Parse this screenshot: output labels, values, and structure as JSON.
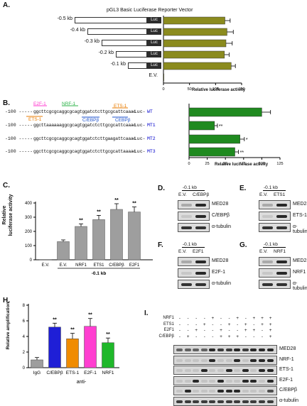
{
  "panel_labels": {
    "A": "A.",
    "B": "B.",
    "C": "C.",
    "D": "D.",
    "E": "E.",
    "F": "F.",
    "G": "G.",
    "H": "H.",
    "I": "I."
  },
  "colors": {
    "olive": "#8b8b1e",
    "green": "#1f8a1f",
    "gray": "#9e9e9e",
    "magenta": "#ff3fd0",
    "blue": "#0000cc",
    "orange": "#e87e04",
    "nrf1_green": "#2db34a",
    "pink_e2f1": "#e040e0",
    "blue_ebp": "#2255cc"
  },
  "panelA": {
    "title": "pGL3 Basic Luciferase Reporter Vector",
    "luc_label": "Luc",
    "constructs": [
      "-0.5 kb",
      "-0.4 kb",
      "-0.3 kb",
      "-0.2 kb",
      "-0.1 kb",
      "E.V."
    ],
    "xlabel": "Relative luciferase activity",
    "ticks": [
      "0",
      "50",
      "100",
      "150"
    ]
  },
  "panelB": {
    "labels": {
      "e2f1": "E2F-1",
      "nrf1": "NRF-1",
      "ets1_top": "ETS-1",
      "ets1_bottom": "ETS-1",
      "cebp1": "C/EBPβ",
      "cebp2": "CEBPβ"
    },
    "rows": [
      {
        "prefix": "-100 -----",
        "seq": "ggcttcgcgcaggcgcagtggatctcttgcgcattcaaac",
        "suffix": "-Luc-",
        "name": "WT"
      },
      {
        "prefix": "-100 -----",
        "seq": "ggcttaaaaaaggcgcagtggatctcttgcgcattcaaac",
        "suffix": "-Luc-",
        "name": "MT1"
      },
      {
        "prefix": "-100 -----",
        "seq": "ggcttcgcgcaggcgcagtggatctcttgaagattcaaac",
        "suffix": "-Luc-",
        "name": "MT2"
      },
      {
        "prefix": "-100 -----",
        "seq": "ggcttcgcgcaggcgcagtggatctcttgcgcattaaaac",
        "suffix": "-Luc-",
        "name": "MT3"
      }
    ],
    "significance": [
      "",
      "**",
      "*",
      "**"
    ],
    "xlabel": "Relative luciferase activity",
    "ticks": [
      "0",
      "25",
      "50",
      "75",
      "100",
      "125"
    ]
  },
  "panelC": {
    "ylabel_line1": "Relative",
    "ylabel_line2": "luciferase activity",
    "group_label": "-0.1 kb",
    "significance": [
      "",
      "",
      "**",
      "**",
      "**",
      "**"
    ],
    "yticks": [
      "0",
      "100",
      "200",
      "300",
      "400"
    ]
  },
  "panelD": {
    "construct": "-0.1 kb",
    "lanes": [
      "E.V.",
      "C/EBPβ"
    ],
    "bands": [
      "MED28",
      "C/EBPβ",
      "α-tubulin"
    ]
  },
  "panelE": {
    "construct": "-0.1 kb",
    "lanes": [
      "E.V.",
      "ETS1"
    ],
    "bands": [
      "MED28",
      "ETS-1",
      "α-tubulin"
    ]
  },
  "panelF": {
    "construct": "-0.1 kb",
    "lanes": [
      "E.V.",
      "E2F1"
    ],
    "bands": [
      "MED28",
      "E2F-1",
      "α-tubulin"
    ]
  },
  "panelG": {
    "construct": "-0.1 kb",
    "lanes": [
      "E.V.",
      "NRF1"
    ],
    "bands": [
      "MED28",
      "NRF1",
      "α-tubulin"
    ]
  },
  "panelH": {
    "ylabel": "Relative amplification",
    "group_label": "anti-",
    "significance": [
      "",
      "**",
      "**",
      "**",
      "**"
    ],
    "yticks": [
      "0",
      "2",
      "4",
      "6",
      "8"
    ]
  },
  "panelI": {
    "rows": [
      {
        "label": "NRF1",
        "signs": [
          "-",
          "-",
          "-",
          "-",
          "+",
          "-",
          "-",
          "+",
          "-",
          "+",
          "+",
          "+"
        ]
      },
      {
        "label": "ETS1",
        "signs": [
          "-",
          "-",
          "-",
          "+",
          "-",
          "-",
          "+",
          "-",
          "+",
          "-",
          "+",
          "+"
        ]
      },
      {
        "label": "E2F1",
        "signs": [
          "-",
          "-",
          "+",
          "-",
          "-",
          "+",
          "-",
          "-",
          "+",
          "+",
          "-",
          "+"
        ]
      },
      {
        "label": "C/EBPβ",
        "signs": [
          "-",
          "+",
          "-",
          "-",
          "-",
          "+",
          "+",
          "+",
          "-",
          "-",
          "-",
          "+"
        ]
      }
    ],
    "bands": [
      "MED28",
      "NRF-1",
      "ETS-1",
      "E2F-1",
      "C/EBPβ",
      "α-tubulin"
    ]
  },
  "chart_data": [
    {
      "panel": "A",
      "type": "bar",
      "orientation": "horizontal",
      "categories": [
        "-0.5 kb",
        "-0.4 kb",
        "-0.3 kb",
        "-0.2 kb",
        "-0.1 kb",
        "E.V."
      ],
      "values": [
        118,
        122,
        120,
        117,
        130,
        1
      ],
      "errors": [
        10,
        12,
        12,
        9,
        8,
        0
      ],
      "xlabel": "Relative luciferase activity",
      "xlim": [
        0,
        160
      ]
    },
    {
      "panel": "B",
      "type": "bar",
      "orientation": "horizontal",
      "categories": [
        "WT",
        "MT1",
        "MT2",
        "MT3"
      ],
      "values": [
        100,
        35,
        70,
        63
      ],
      "errors": [
        12,
        4,
        6,
        5
      ],
      "xlabel": "Relative luciferase activity",
      "xlim": [
        0,
        125
      ]
    },
    {
      "panel": "C",
      "type": "bar",
      "categories": [
        "E.V.",
        "E.V.",
        "NRF1",
        "ETS1",
        "C/EBPβ",
        "E2F1"
      ],
      "values": [
        2,
        128,
        235,
        283,
        355,
        337
      ],
      "errors": [
        0,
        12,
        18,
        30,
        40,
        35
      ],
      "ylabel": "Relative luciferase activity",
      "ylim": [
        0,
        400
      ]
    },
    {
      "panel": "H",
      "type": "bar",
      "categories": [
        "IgG",
        "C/EBPβ",
        "ETS-1",
        "E2F-1",
        "NRF1"
      ],
      "values": [
        1.0,
        5.2,
        3.7,
        5.3,
        3.2
      ],
      "errors": [
        0.3,
        0.5,
        0.7,
        1.0,
        0.6
      ],
      "colors": [
        "#9e9e9e",
        "#1f1fd6",
        "#f08c00",
        "#ff3fd0",
        "#1fb82a"
      ],
      "ylabel": "Relative amplification",
      "ylim": [
        0,
        8
      ]
    }
  ]
}
